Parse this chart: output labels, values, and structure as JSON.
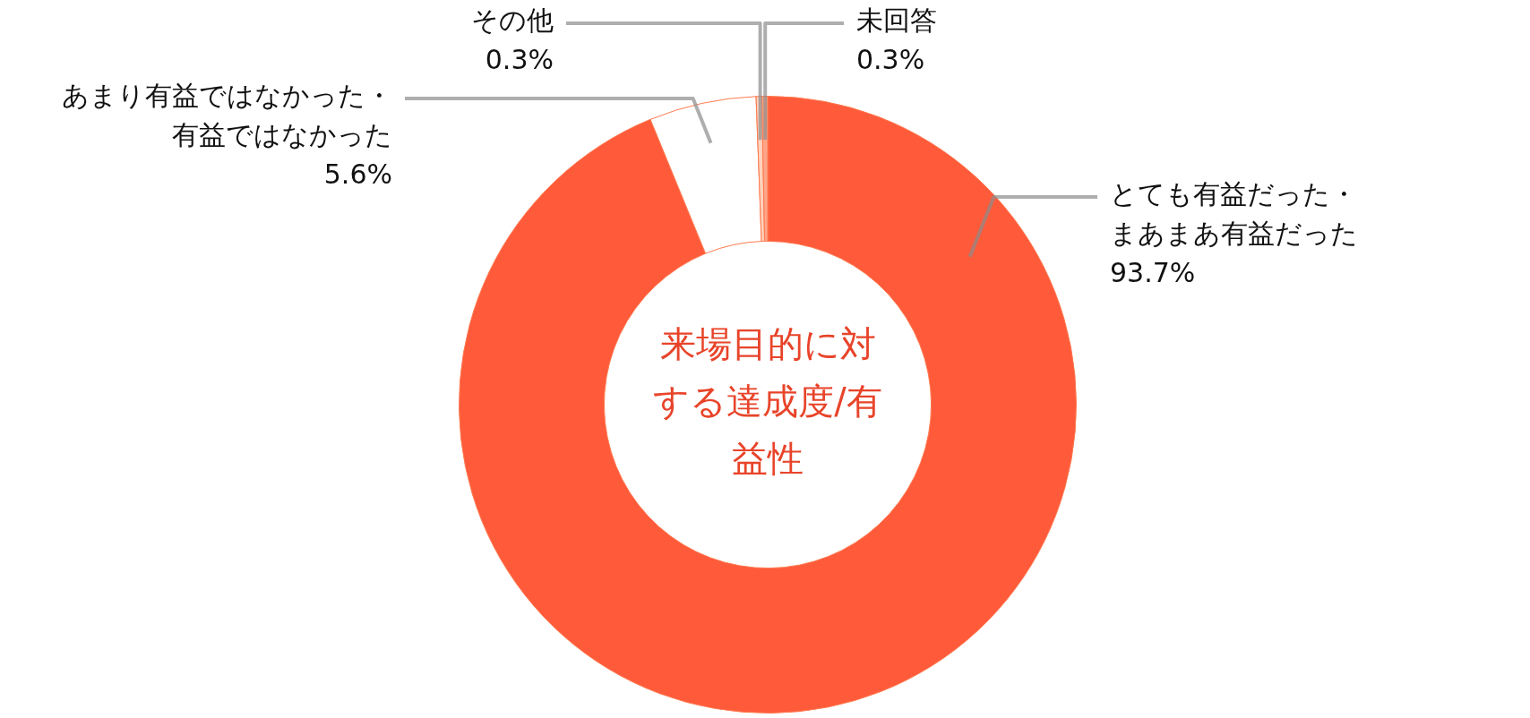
{
  "chart_data": {
    "type": "donut",
    "title": "来場目的に対する達成度/有益性",
    "categories": [
      "とても有益だった・まあまあ有益だった",
      "あまり有益ではなかった・有益ではなかった",
      "その他",
      "未回答"
    ],
    "values": [
      93.7,
      5.6,
      0.3,
      0.3
    ],
    "colors": [
      "#ff5a3a",
      "#ffffff",
      "#ffd3bd",
      "#ffa58a"
    ],
    "value_labels": [
      "93.7%",
      "5.6%",
      "0.3%",
      "0.3%"
    ],
    "legend": false
  }
}
